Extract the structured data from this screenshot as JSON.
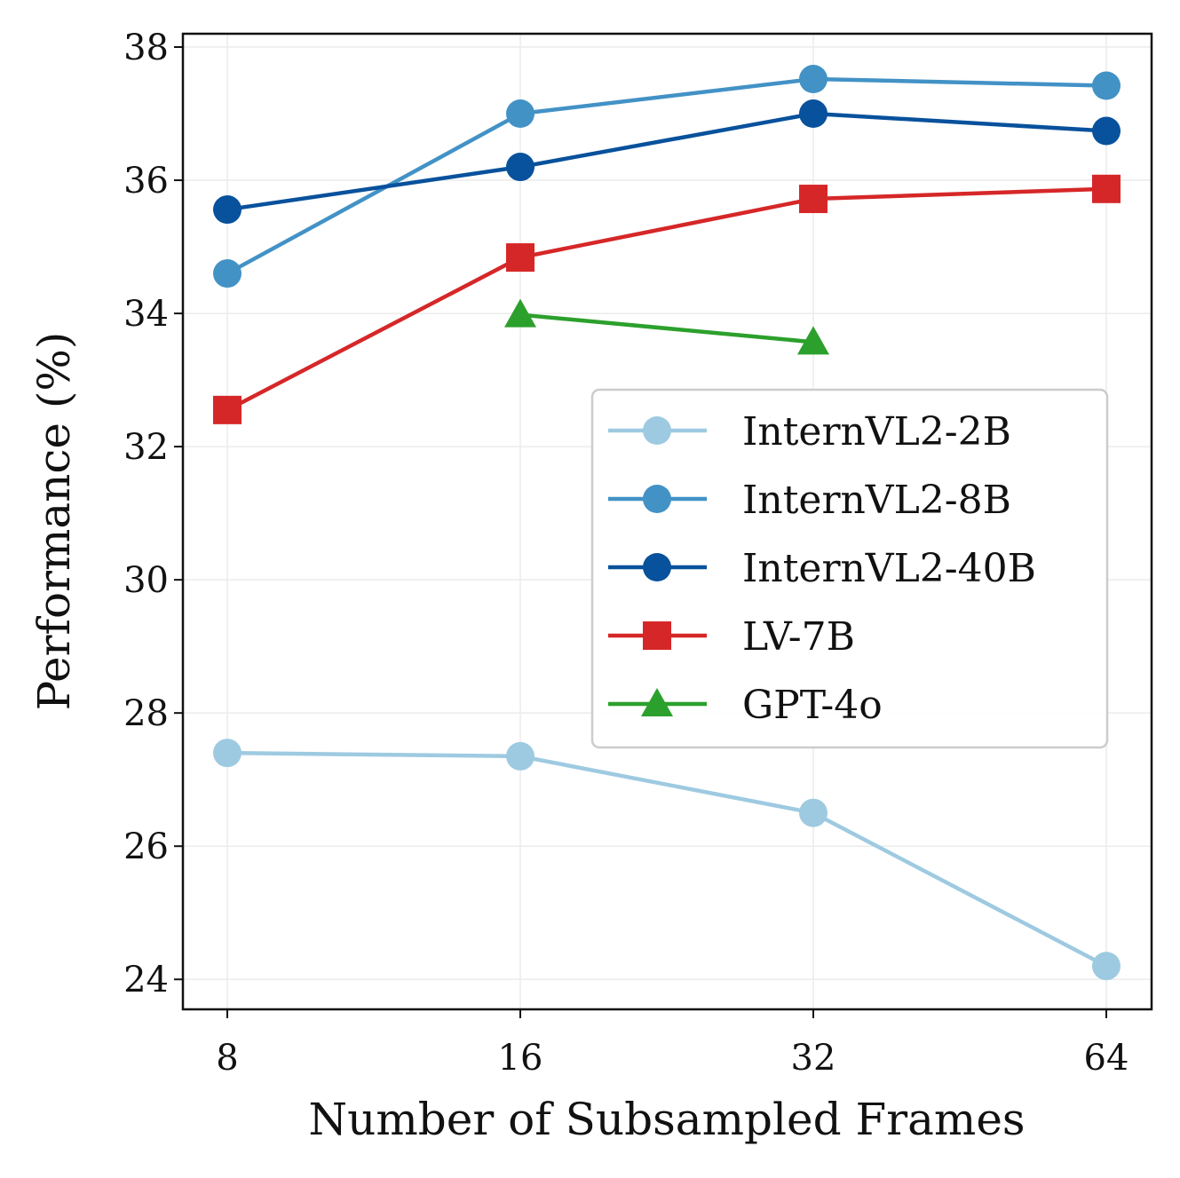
{
  "chart_data": {
    "type": "line",
    "title": "",
    "xlabel": "Number of Subsampled Frames",
    "ylabel": "Performance (%)",
    "x": [
      8,
      16,
      32,
      64
    ],
    "xticks": [
      "8",
      "16",
      "32",
      "64"
    ],
    "yticks": [
      24,
      26,
      28,
      30,
      32,
      34,
      36,
      38
    ],
    "ylim": [
      23.55,
      38.2
    ],
    "grid": true,
    "legend_position": "center-right",
    "series": [
      {
        "name": "InternVL2-2B",
        "color": "#9ecae1",
        "marker": "circle",
        "values": [
          27.4,
          27.35,
          26.5,
          24.2
        ]
      },
      {
        "name": "InternVL2-8B",
        "color": "#4292c6",
        "marker": "circle",
        "values": [
          34.6,
          37.0,
          37.52,
          37.42
        ]
      },
      {
        "name": "InternVL2-40B",
        "color": "#08519c",
        "marker": "circle",
        "values": [
          35.56,
          36.2,
          37.0,
          36.74
        ]
      },
      {
        "name": "LV-7B",
        "color": "#d62728",
        "marker": "square",
        "values": [
          32.55,
          34.84,
          35.72,
          35.87
        ]
      },
      {
        "name": "GPT-4o",
        "color": "#2ca02c",
        "marker": "triangle",
        "values": [
          null,
          33.98,
          33.57,
          null
        ]
      }
    ]
  }
}
